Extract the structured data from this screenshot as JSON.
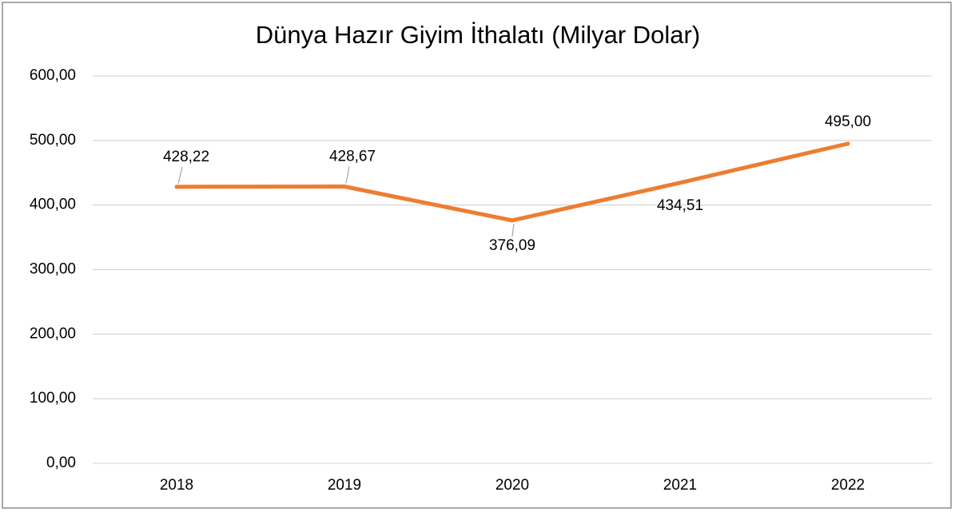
{
  "chart_data": {
    "type": "line",
    "title": "Dünya Hazır Giyim İthalatı (Milyar Dolar)",
    "categories": [
      "2018",
      "2019",
      "2020",
      "2021",
      "2022"
    ],
    "series": [
      {
        "name": "Dünya Hazır Giyim İthalatı",
        "color": "#ed7d31",
        "values": [
          428.22,
          428.67,
          376.09,
          434.51,
          495.0
        ],
        "value_labels": [
          "428,22",
          "428,67",
          "376,09",
          "434,51",
          "495,00"
        ]
      }
    ],
    "ylim": [
      0,
      600
    ],
    "yticks": [
      {
        "value": 0,
        "label": "0,00"
      },
      {
        "value": 100,
        "label": "100,00"
      },
      {
        "value": 200,
        "label": "200,00"
      },
      {
        "value": 300,
        "label": "300,00"
      },
      {
        "value": 400,
        "label": "400,00"
      },
      {
        "value": 500,
        "label": "500,00"
      },
      {
        "value": 600,
        "label": "600,00"
      }
    ],
    "grid": true
  }
}
